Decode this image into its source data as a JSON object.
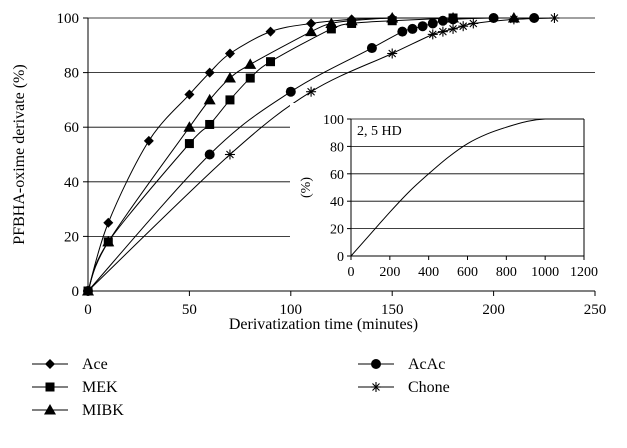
{
  "chart_data": [
    {
      "type": "line",
      "title": "",
      "xlabel": "Derivatization time (minutes)",
      "ylabel": "PFBHA-oxime derivate (%)",
      "xlim": [
        0,
        250
      ],
      "ylim": [
        0,
        100
      ],
      "x_ticks": [
        "0",
        "50",
        "100",
        "150",
        "200",
        "250"
      ],
      "y_ticks": [
        "0",
        "20",
        "40",
        "60",
        "80",
        "100"
      ],
      "grid": "horizontal",
      "legend": "bottom",
      "series": [
        {
          "name": "Ace",
          "marker": "diamond",
          "x": [
            0,
            10,
            30,
            50,
            60,
            70,
            90,
            110,
            130,
            150,
            180
          ],
          "y": [
            0,
            25,
            55,
            72,
            80,
            87,
            95,
            98,
            99.5,
            100,
            100
          ]
        },
        {
          "name": "MEK",
          "marker": "square",
          "x": [
            0,
            10,
            50,
            60,
            70,
            80,
            90,
            120,
            130,
            150,
            180
          ],
          "y": [
            0,
            18,
            54,
            61,
            70,
            78,
            84,
            96,
            98,
            99,
            100
          ]
        },
        {
          "name": "MIBK",
          "marker": "triangle",
          "x": [
            0,
            10,
            50,
            60,
            70,
            80,
            110,
            120,
            130,
            150,
            180,
            210
          ],
          "y": [
            0,
            18,
            60,
            70,
            78,
            83,
            95,
            98,
            99,
            100,
            100,
            100
          ]
        },
        {
          "name": "AcAc",
          "marker": "circle",
          "x": [
            0,
            60,
            100,
            140,
            155,
            160,
            165,
            170,
            175,
            180,
            200,
            220
          ],
          "y": [
            0,
            50,
            73,
            89,
            95,
            96,
            97,
            98,
            99,
            99.5,
            100,
            100
          ]
        },
        {
          "name": "Chone",
          "marker": "asterisk",
          "x": [
            0,
            70,
            110,
            150,
            170,
            175,
            180,
            185,
            190,
            210,
            230
          ],
          "y": [
            0,
            50,
            73,
            87,
            94,
            95,
            96,
            97,
            98,
            99.5,
            100
          ]
        }
      ]
    },
    {
      "type": "line",
      "title": "",
      "annotation": "2, 5 HD",
      "xlabel": "",
      "ylabel": "(%)",
      "xlim": [
        0,
        1200
      ],
      "ylim": [
        0,
        100
      ],
      "x_ticks": [
        "0",
        "200",
        "400",
        "600",
        "800",
        "1000",
        "1200"
      ],
      "y_ticks": [
        "0",
        "20",
        "40",
        "60",
        "80",
        "100"
      ],
      "grid": "horizontal",
      "series": [
        {
          "name": "2, 5 HD",
          "x": [
            0,
            100,
            200,
            300,
            400,
            500,
            600,
            700,
            800,
            900,
            1000,
            1200
          ],
          "y": [
            0,
            16,
            32,
            47,
            60,
            72,
            82,
            89,
            94,
            98,
            100,
            100
          ]
        }
      ]
    }
  ],
  "colors": {
    "line": "#000000",
    "grid": "#000000",
    "background": "#ffffff"
  }
}
